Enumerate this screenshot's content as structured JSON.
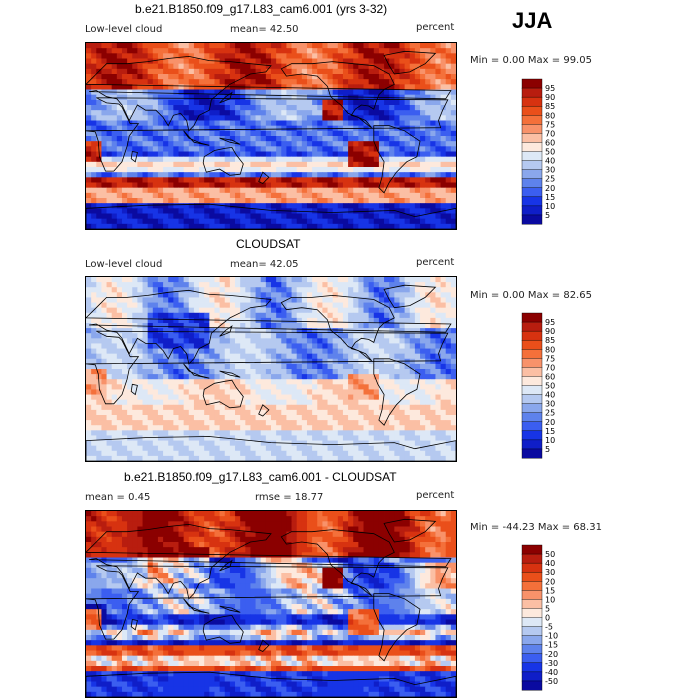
{
  "season": "JJA",
  "panels": [
    {
      "title": "b.e21.B1850.f09_g17.L83_cam6.001 (yrs 3-32)",
      "left_label": "Low-level cloud",
      "center_label": "mean=  42.50",
      "right_label": "percent",
      "minmax": "Min =   0.00 Max =  99.05",
      "colorbar_labels": [
        "95",
        "90",
        "85",
        "80",
        "75",
        "70",
        "60",
        "50",
        "40",
        "30",
        "25",
        "20",
        "15",
        "10",
        "5"
      ],
      "colorbar_colors": [
        "#8b0000",
        "#b81d0f",
        "#d73210",
        "#ea4f1a",
        "#f4703a",
        "#f8926a",
        "#fbbfa4",
        "#fde9dd",
        "#dde8f6",
        "#b5c9f0",
        "#8aa7ec",
        "#5e82ec",
        "#3b5ef0",
        "#1734e6",
        "#0f1ec8",
        "#0a0aa0"
      ],
      "pattern": "model"
    },
    {
      "title": "CLOUDSAT",
      "left_label": "Low-level cloud",
      "center_label": "mean=  42.05",
      "right_label": "percent",
      "minmax": "Min =   0.00 Max =  82.65",
      "colorbar_labels": [
        "95",
        "90",
        "85",
        "80",
        "75",
        "70",
        "60",
        "50",
        "40",
        "30",
        "25",
        "20",
        "15",
        "10",
        "5"
      ],
      "colorbar_colors": [
        "#8b0000",
        "#b81d0f",
        "#d73210",
        "#ea4f1a",
        "#f4703a",
        "#f8926a",
        "#fbbfa4",
        "#fde9dd",
        "#dde8f6",
        "#b5c9f0",
        "#8aa7ec",
        "#5e82ec",
        "#3b5ef0",
        "#1734e6",
        "#0f1ec8",
        "#0a0aa0"
      ],
      "pattern": "obs"
    },
    {
      "title": "b.e21.B1850.f09_g17.L83_cam6.001 - CLOUDSAT",
      "left_label": "mean =    0.45",
      "center_label": "rmse =  18.77",
      "right_label": "percent",
      "minmax": "Min = -44.23 Max =  68.31",
      "colorbar_labels": [
        "50",
        "40",
        "30",
        "20",
        "15",
        "10",
        "5",
        "0",
        "-5",
        "-10",
        "-15",
        "-20",
        "-30",
        "-40",
        "-50"
      ],
      "colorbar_colors": [
        "#8b0000",
        "#b81d0f",
        "#d73210",
        "#ea4f1a",
        "#f4703a",
        "#f8926a",
        "#fbbfa4",
        "#fde9dd",
        "#dde8f6",
        "#b5c9f0",
        "#8aa7ec",
        "#5e82ec",
        "#3b5ef0",
        "#1734e6",
        "#0f1ec8",
        "#0a0aa0"
      ],
      "pattern": "diff"
    }
  ],
  "chart_data": [
    {
      "type": "heatmap",
      "title": "b.e21.B1850.f09_g17.L83_cam6.001 (yrs 3-32)",
      "variable": "Low-level cloud",
      "units": "percent",
      "mean": 42.5,
      "min": 0.0,
      "max": 99.05,
      "levels": [
        5,
        10,
        15,
        20,
        25,
        30,
        40,
        50,
        60,
        70,
        75,
        80,
        85,
        90,
        95
      ]
    },
    {
      "type": "heatmap",
      "title": "CLOUDSAT",
      "variable": "Low-level cloud",
      "units": "percent",
      "mean": 42.05,
      "min": 0.0,
      "max": 82.65,
      "levels": [
        5,
        10,
        15,
        20,
        25,
        30,
        40,
        50,
        60,
        70,
        75,
        80,
        85,
        90,
        95
      ]
    },
    {
      "type": "heatmap",
      "title": "b.e21.B1850.f09_g17.L83_cam6.001 - CLOUDSAT",
      "units": "percent",
      "mean": 0.45,
      "rmse": 18.77,
      "min": -44.23,
      "max": 68.31,
      "levels": [
        -50,
        -40,
        -30,
        -20,
        -15,
        -10,
        -5,
        0,
        5,
        10,
        15,
        20,
        30,
        40,
        50
      ]
    }
  ]
}
